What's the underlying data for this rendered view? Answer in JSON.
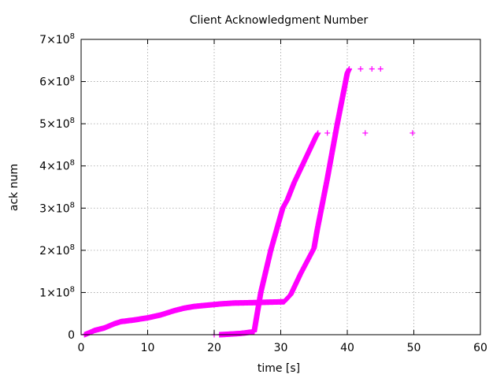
{
  "chart_data": {
    "type": "scatter",
    "title": "Client Acknowledgment Number",
    "xlabel": "time [s]",
    "ylabel": "ack num",
    "xlim": [
      0,
      60
    ],
    "ylim": [
      0,
      700000000
    ],
    "grid": true,
    "x_ticks": [
      {
        "value": 0,
        "label": "0"
      },
      {
        "value": 10,
        "label": "10"
      },
      {
        "value": 20,
        "label": "20"
      },
      {
        "value": 30,
        "label": "30"
      },
      {
        "value": 40,
        "label": "40"
      },
      {
        "value": 50,
        "label": "50"
      },
      {
        "value": 60,
        "label": "60"
      }
    ],
    "y_ticks": [
      {
        "value": 0,
        "label": "0",
        "mant": "",
        "exp": ""
      },
      {
        "value": 100000000,
        "label": "1×10⁸",
        "mant": "1×10",
        "exp": "8"
      },
      {
        "value": 200000000,
        "label": "2×10⁸",
        "mant": "2×10",
        "exp": "8"
      },
      {
        "value": 300000000,
        "label": "3×10⁸",
        "mant": "3×10",
        "exp": "8"
      },
      {
        "value": 400000000,
        "label": "4×10⁸",
        "mant": "4×10",
        "exp": "8"
      },
      {
        "value": 500000000,
        "label": "5×10⁸",
        "mant": "5×10",
        "exp": "8"
      },
      {
        "value": 600000000,
        "label": "6×10⁸",
        "mant": "6×10",
        "exp": "8"
      },
      {
        "value": 700000000,
        "label": "7×10⁸",
        "mant": "7×10",
        "exp": "8"
      }
    ],
    "marker": "+",
    "color": "#ff00ff",
    "series": [
      {
        "curve": [
          [
            0.5,
            0
          ],
          [
            1,
            3000000
          ],
          [
            2,
            10000000
          ],
          [
            3.5,
            16000000
          ],
          [
            5,
            26000000
          ],
          [
            6,
            31000000
          ],
          [
            8,
            35000000
          ],
          [
            10,
            40000000
          ],
          [
            12,
            47000000
          ],
          [
            14,
            57000000
          ],
          [
            15.5,
            63000000
          ],
          [
            17,
            67000000
          ],
          [
            19,
            70000000
          ],
          [
            21,
            73000000
          ],
          [
            23,
            75000000
          ],
          [
            26,
            76000000
          ],
          [
            28,
            77000000
          ],
          [
            30.5,
            78000000
          ],
          [
            31.5,
            95000000
          ],
          [
            33,
            145000000
          ],
          [
            35,
            205000000
          ],
          [
            35.5,
            250000000
          ],
          [
            37,
            370000000
          ],
          [
            38.5,
            500000000
          ],
          [
            40,
            620000000
          ],
          [
            40.3,
            630000000
          ]
        ],
        "outliers": [
          [
            42,
            630000000
          ],
          [
            43.7,
            630000000
          ],
          [
            45,
            630000000
          ]
        ]
      },
      {
        "curve": [
          [
            20.8,
            0
          ],
          [
            22,
            1000000
          ],
          [
            24,
            3000000
          ],
          [
            26,
            7000000
          ],
          [
            27,
            100000000
          ],
          [
            28.5,
            200000000
          ],
          [
            30.3,
            300000000
          ],
          [
            31,
            320000000
          ],
          [
            32,
            360000000
          ],
          [
            33.5,
            410000000
          ],
          [
            35.3,
            470000000
          ],
          [
            35.6,
            478000000
          ]
        ],
        "outliers": [
          [
            20,
            0
          ],
          [
            37,
            478000000
          ],
          [
            38.2,
            478000000
          ],
          [
            42.7,
            478000000
          ],
          [
            49.8,
            478000000
          ]
        ]
      }
    ]
  }
}
